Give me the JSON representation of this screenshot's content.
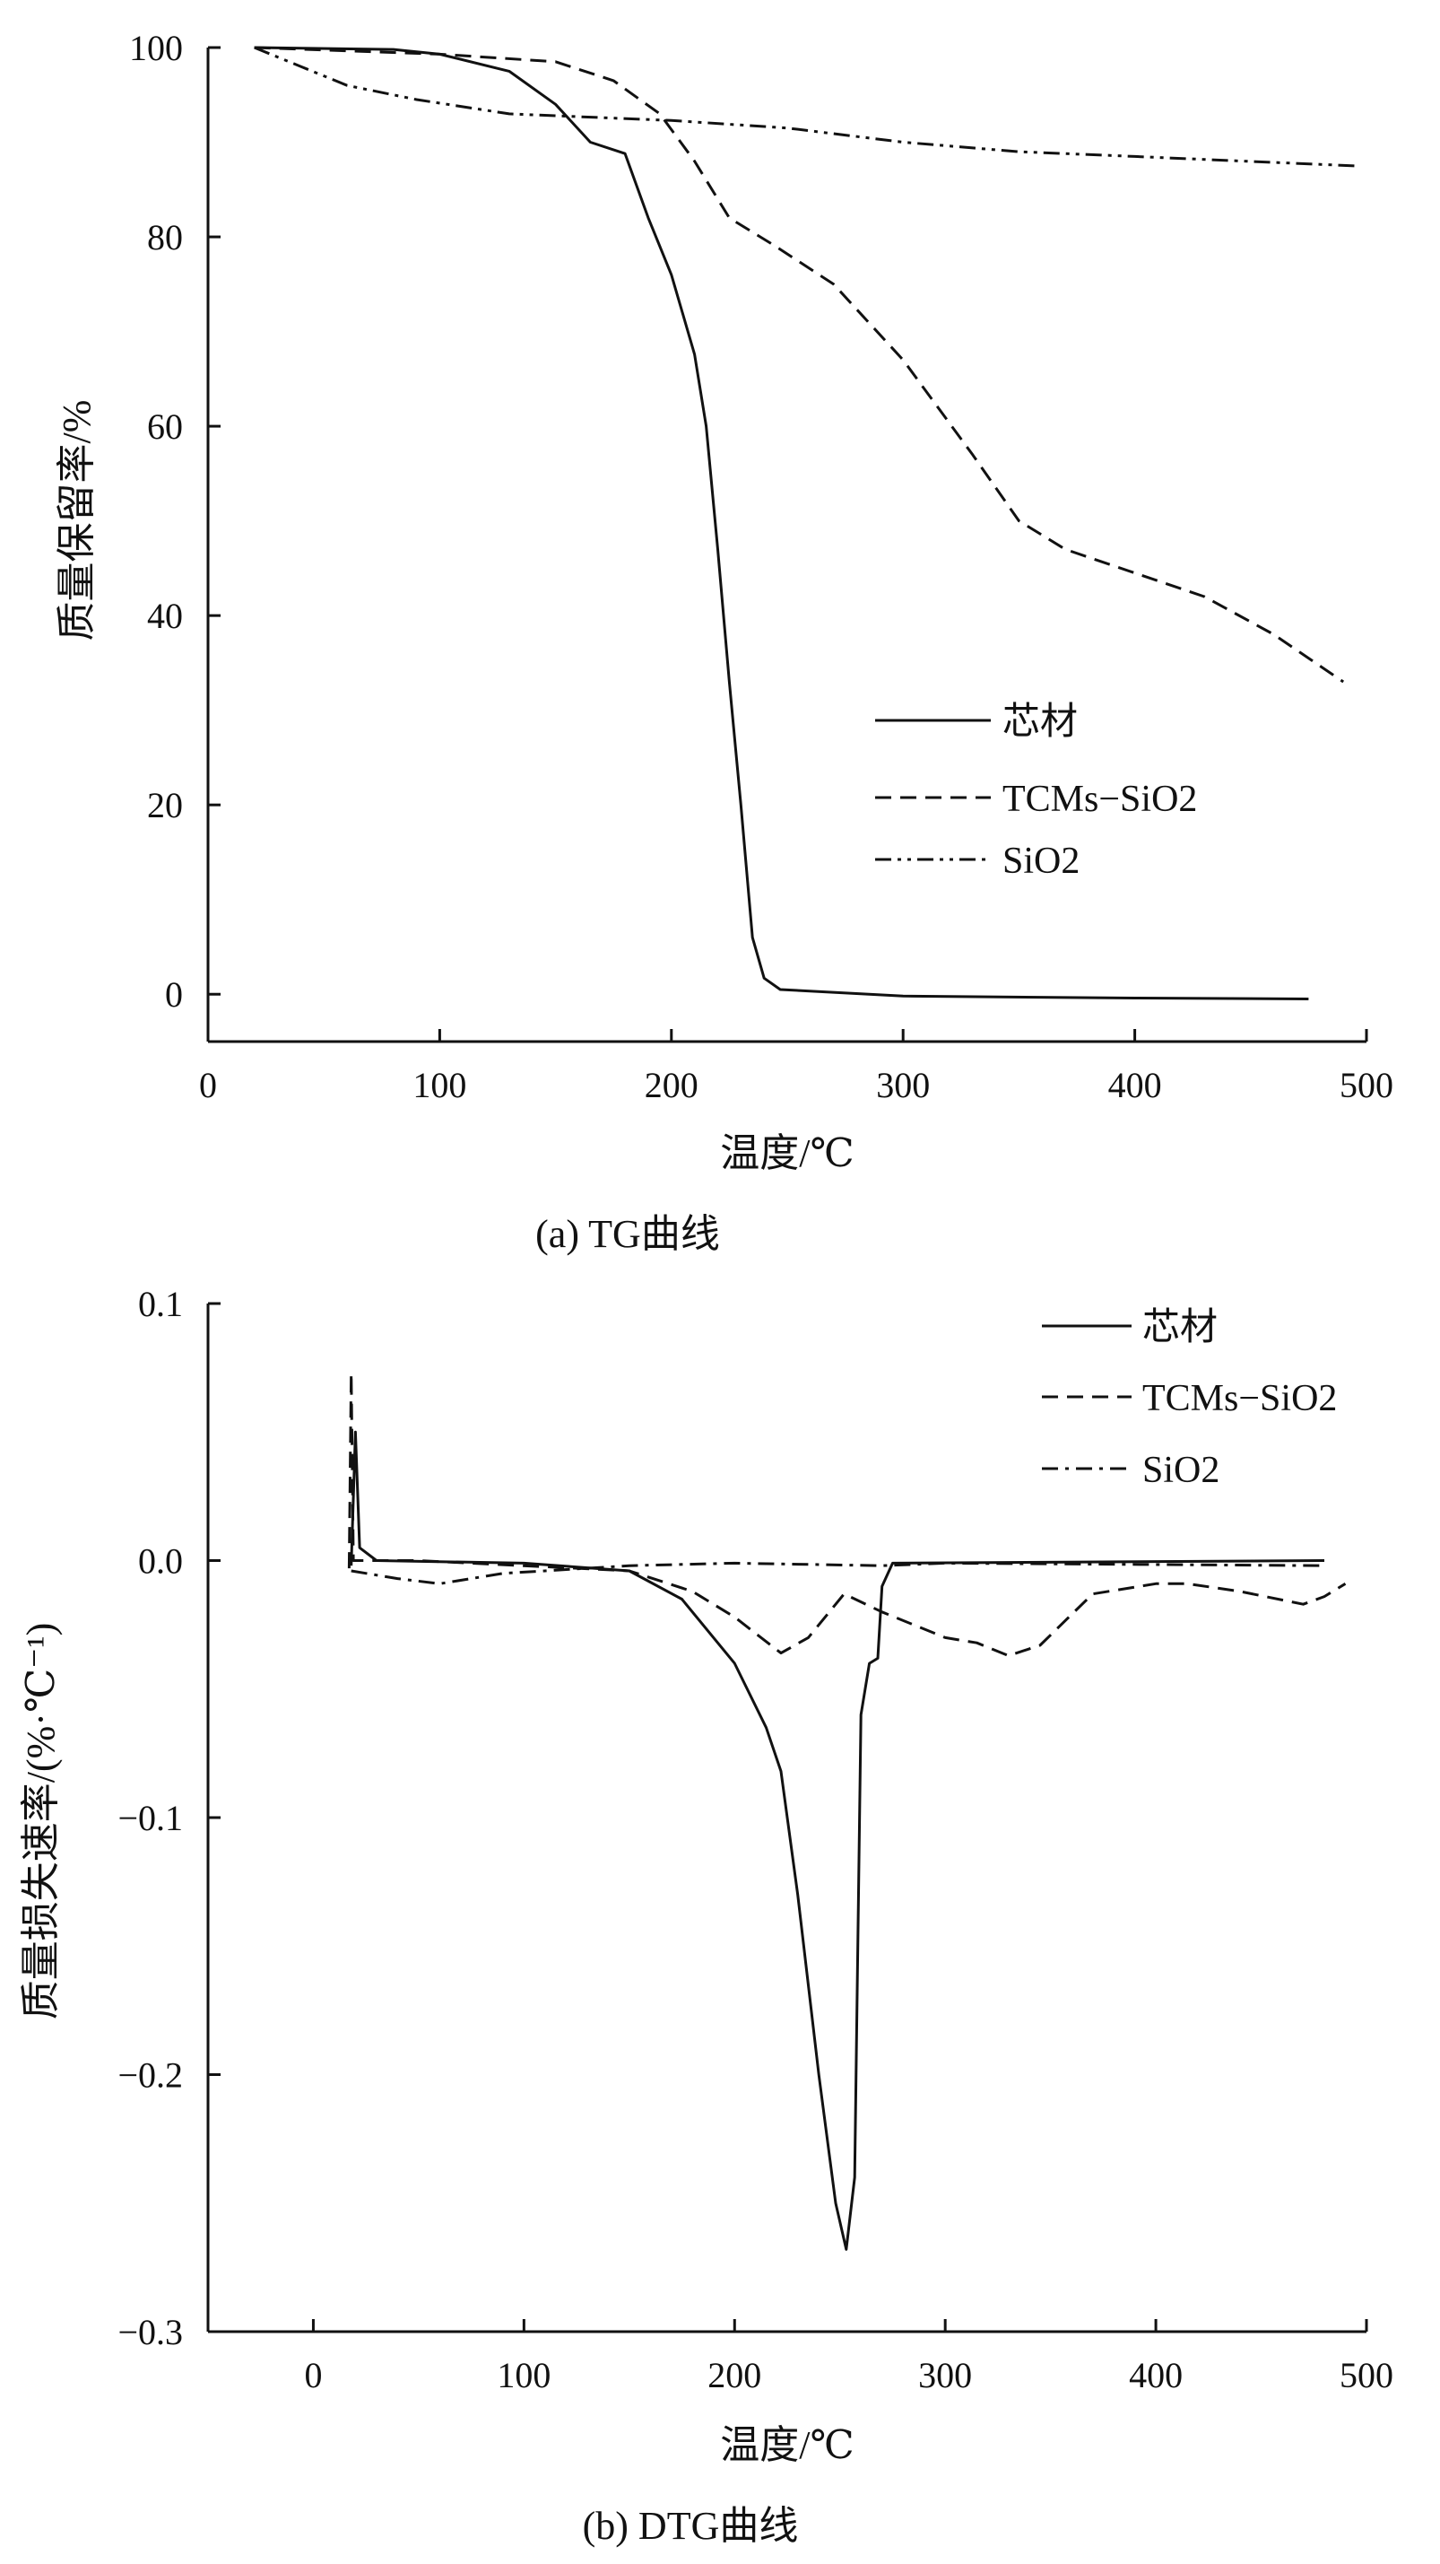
{
  "chart_data": [
    {
      "type": "line",
      "caption": "(a)  TG曲线",
      "xlabel": "温度/℃",
      "ylabel": "质量保留率/%",
      "xlim": [
        0,
        500
      ],
      "ylim": [
        -5,
        100
      ],
      "xticks": [
        "0",
        "100",
        "200",
        "300",
        "400",
        "500"
      ],
      "xtick_values": [
        0,
        100,
        200,
        300,
        400,
        500
      ],
      "yticks": [
        "0",
        "20",
        "40",
        "60",
        "80",
        "100"
      ],
      "ytick_values": [
        0,
        20,
        40,
        60,
        80,
        100
      ],
      "legend_position": "center-right",
      "grid": false,
      "series": [
        {
          "name": "芯材",
          "style": "solid",
          "x": [
            20,
            80,
            100,
            130,
            150,
            165,
            180,
            190,
            200,
            210,
            215,
            220,
            225,
            230,
            235,
            240,
            247,
            300,
            400,
            475
          ],
          "y": [
            100,
            99.8,
            99.3,
            97.5,
            94,
            90,
            88.8,
            82,
            76,
            67.6,
            60,
            47,
            33,
            20,
            6,
            1.7,
            0.5,
            -0.2,
            -0.4,
            -0.5
          ]
        },
        {
          "name": "TCMs−SiO2",
          "style": "dashed",
          "x": [
            20,
            100,
            150,
            175,
            195,
            210,
            225,
            245,
            270,
            300,
            330,
            350,
            370,
            400,
            430,
            460,
            490
          ],
          "y": [
            100,
            99.3,
            98.5,
            96.5,
            93,
            88,
            82,
            79,
            75,
            67,
            57,
            50,
            47,
            44.5,
            42,
            38,
            33
          ]
        },
        {
          "name": "SiO2",
          "style": "dashdotdot",
          "x": [
            20,
            40,
            60,
            90,
            130,
            200,
            250,
            300,
            350,
            400,
            495
          ],
          "y": [
            100,
            98,
            96,
            94.5,
            93,
            92.3,
            91.5,
            90,
            89,
            88.5,
            87.5
          ]
        }
      ]
    },
    {
      "type": "line",
      "caption": "(b)  DTG曲线",
      "xlabel": "温度/℃",
      "ylabel": "质量损失速率/(%·℃⁻¹)",
      "xlim": [
        -50,
        500
      ],
      "ylim": [
        -0.3,
        0.1
      ],
      "xticks": [
        "0",
        "100",
        "200",
        "300",
        "400",
        "500"
      ],
      "xtick_values": [
        0,
        100,
        200,
        300,
        400,
        500
      ],
      "yticks": [
        "0.1",
        "0.0",
        "−0.1",
        "−0.2",
        "−0.3"
      ],
      "ytick_values": [
        0.1,
        0.0,
        -0.1,
        -0.2,
        -0.3
      ],
      "legend_position": "top-right",
      "grid": false,
      "series": [
        {
          "name": "芯材",
          "style": "solid",
          "x": [
            18,
            20,
            22,
            30,
            100,
            150,
            175,
            200,
            215,
            222,
            230,
            240,
            248,
            253,
            257,
            260,
            264,
            268,
            270,
            275,
            480
          ],
          "y": [
            -0.002,
            0.05,
            0.005,
            0,
            -0.001,
            -0.004,
            -0.015,
            -0.04,
            -0.065,
            -0.082,
            -0.13,
            -0.2,
            -0.25,
            -0.268,
            -0.24,
            -0.06,
            -0.04,
            -0.038,
            -0.01,
            -0.001,
            0
          ]
        },
        {
          "name": "TCMs−SiO2",
          "style": "dashed",
          "x": [
            17,
            18,
            19,
            50,
            150,
            180,
            200,
            222,
            235,
            252,
            270,
            300,
            315,
            330,
            345,
            370,
            400,
            415,
            440,
            470,
            480,
            490
          ],
          "y": [
            -0.003,
            0.073,
            0,
            0,
            -0.004,
            -0.012,
            -0.022,
            -0.036,
            -0.03,
            -0.013,
            -0.02,
            -0.03,
            -0.032,
            -0.037,
            -0.033,
            -0.013,
            -0.009,
            -0.009,
            -0.012,
            -0.017,
            -0.014,
            -0.009
          ]
        },
        {
          "name": "SiO2",
          "style": "dashdot",
          "x": [
            18,
            40,
            60,
            90,
            130,
            150,
            200,
            270,
            300,
            480
          ],
          "y": [
            -0.004,
            -0.007,
            -0.009,
            -0.005,
            -0.003,
            -0.002,
            -0.001,
            -0.002,
            -0.001,
            -0.002
          ]
        }
      ]
    }
  ]
}
